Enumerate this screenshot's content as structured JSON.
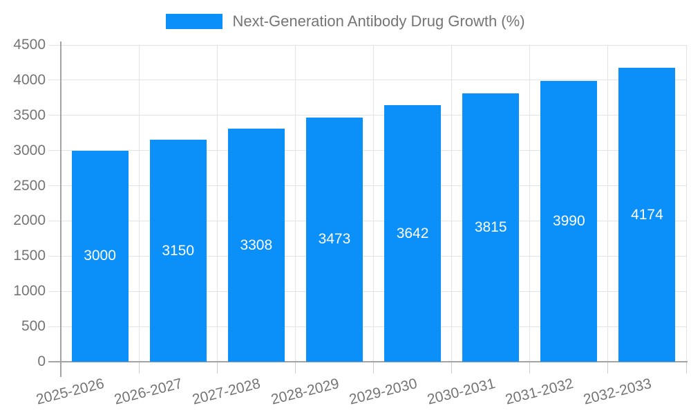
{
  "chart_data": {
    "type": "bar",
    "title": "Next-Generation Antibody Drug Growth (%)",
    "xlabel": "",
    "ylabel": "",
    "categories": [
      "2025-2026",
      "2026-2027",
      "2027-2028",
      "2028-2029",
      "2029-2030",
      "2030-2031",
      "2031-2032",
      "2032-2033"
    ],
    "values": [
      3000,
      3150,
      3308,
      3473,
      3642,
      3815,
      3990,
      4174
    ],
    "ylim": [
      0,
      4500
    ],
    "yticks": [
      0,
      500,
      1000,
      1500,
      2000,
      2500,
      3000,
      3500,
      4000,
      4500
    ],
    "grid": true,
    "legend_position": "top",
    "value_labels": "inside-center"
  },
  "legend": {
    "label": "Next-Generation Antibody Drug Growth (%)"
  },
  "colors": {
    "bar": "#0A90F8",
    "bar_label": "#FFFFFF",
    "axis": "#A3A3A3",
    "tick": "#CCCCCC",
    "gridline": "#E3E3E3",
    "text": "#757575",
    "background": "#FFFFFF"
  }
}
